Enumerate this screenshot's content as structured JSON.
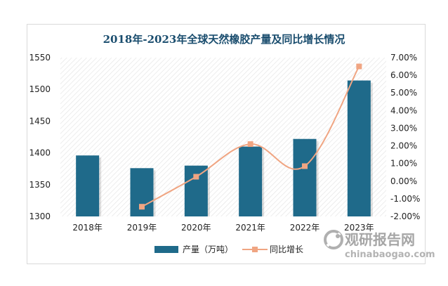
{
  "chart_data": {
    "type": "bar",
    "title": "2018年-2023年全球天然橡胶产量及同比增长情况",
    "categories": [
      "2018年",
      "2019年",
      "2020年",
      "2021年",
      "2022年",
      "2023年"
    ],
    "series": [
      {
        "name": "产量（万吨）",
        "type": "bar",
        "axis": "left",
        "values": [
          1396,
          1376,
          1380,
          1410,
          1422,
          1514
        ]
      },
      {
        "name": "同比增长",
        "type": "line",
        "axis": "right",
        "values": [
          null,
          -1.45,
          0.25,
          2.1,
          0.85,
          6.5
        ]
      }
    ],
    "left_axis": {
      "ylim": [
        1300,
        1550
      ],
      "ticks": [
        "1300",
        "1350",
        "1400",
        "1450",
        "1500",
        "1550"
      ]
    },
    "right_axis": {
      "ylim": [
        -2,
        7
      ],
      "ticks": [
        "-2.00%",
        "-1.00%",
        "0.00%",
        "1.00%",
        "2.00%",
        "3.00%",
        "4.00%",
        "5.00%",
        "6.00%",
        "7.00%"
      ]
    },
    "legend_position": "bottom",
    "grid": false,
    "colors": {
      "bar": "#1f6a8a",
      "line": "#f0a582",
      "marker": "#f0a582",
      "hatch": "#e3e3e3"
    }
  },
  "watermark": {
    "cn": "观研报告网",
    "en": "chinabaogao.com"
  }
}
